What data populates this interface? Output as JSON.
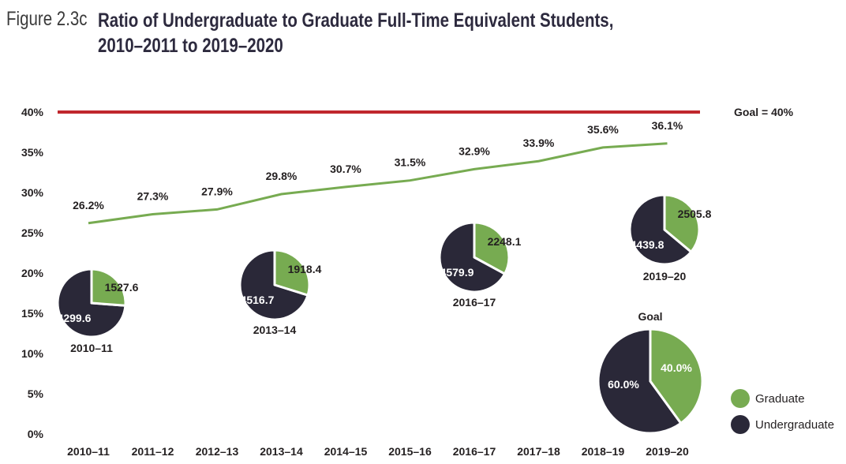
{
  "figure": {
    "label": "Figure 2.3c",
    "title_line1": "Ratio of Undergraduate to Graduate Full-Time Equivalent Students,",
    "title_line2": "2010–2011 to 2019–2020"
  },
  "colors": {
    "graduate": "#77ab51",
    "undergraduate": "#2a2838",
    "goal_line": "#c0272d",
    "ratio_line": "#77ab51"
  },
  "chart_data": {
    "type": "line",
    "categories": [
      "2010–11",
      "2011–12",
      "2012–13",
      "2013–14",
      "2014–15",
      "2015–16",
      "2016–17",
      "2017–18",
      "2018–19",
      "2019–20"
    ],
    "series": [
      {
        "values": [
          26.2,
          27.3,
          27.9,
          29.8,
          30.7,
          31.5,
          32.9,
          33.9,
          35.6,
          36.1
        ],
        "labels": [
          "26.2%",
          "27.3%",
          "27.9%",
          "29.8%",
          "30.7%",
          "31.5%",
          "32.9%",
          "33.9%",
          "35.6%",
          "36.1%"
        ]
      }
    ],
    "ylim": [
      0,
      40
    ],
    "yticks": [
      "0%",
      "5%",
      "10%",
      "15%",
      "20%",
      "25%",
      "30%",
      "35%",
      "40%"
    ],
    "goal": {
      "value": 40,
      "label": "Goal = 40%"
    },
    "pies": [
      {
        "label": "2010–11",
        "graduate": 1527.6,
        "undergraduate": 4299.6,
        "graduate_label": "1527.6",
        "undergraduate_label": "4299.6"
      },
      {
        "label": "2013–14",
        "graduate": 1918.4,
        "undergraduate": 4516.7,
        "graduate_label": "1918.4",
        "undergraduate_label": "4516.7"
      },
      {
        "label": "2016–17",
        "graduate": 2248.1,
        "undergraduate": 4579.9,
        "graduate_label": "2248.1",
        "undergraduate_label": "4579.9"
      },
      {
        "label": "2019–20",
        "graduate": 2505.8,
        "undergraduate": 4439.8,
        "graduate_label": "2505.8",
        "undergraduate_label": "4439.8"
      },
      {
        "label": "Goal",
        "graduate": 40.0,
        "undergraduate": 60.0,
        "graduate_label": "40.0%",
        "undergraduate_label": "60.0%"
      }
    ],
    "legend": [
      {
        "key": "graduate",
        "label": "Graduate"
      },
      {
        "key": "undergraduate",
        "label": "Undergraduate"
      }
    ],
    "legend_position": "bottom-right"
  }
}
